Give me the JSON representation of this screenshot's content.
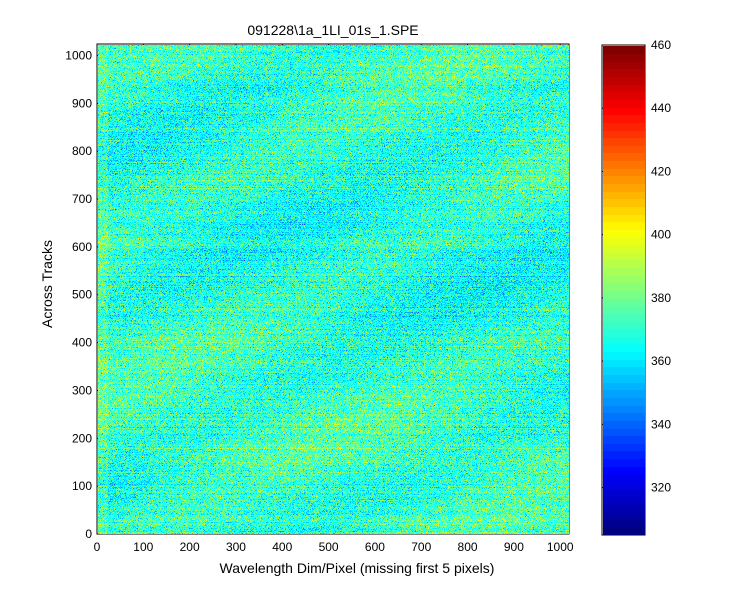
{
  "chart_data": {
    "type": "heatmap",
    "title": "091228\\1a_1LI_01s_1.SPE",
    "xlabel": "Wavelength Dim/Pixel (missing first 5 pixels)",
    "ylabel": "Across Tracks",
    "xlim": [
      0,
      1019
    ],
    "ylim": [
      0,
      1024
    ],
    "x_ticks": [
      0,
      100,
      200,
      300,
      400,
      500,
      600,
      700,
      800,
      900,
      1000
    ],
    "y_ticks": [
      0,
      100,
      200,
      300,
      400,
      500,
      600,
      700,
      800,
      900,
      1000
    ],
    "colormap": "jet",
    "color_range": [
      305,
      460
    ],
    "colorbar_ticks": [
      320,
      340,
      360,
      380,
      400,
      420,
      440,
      460
    ],
    "typical_value_range": [
      345,
      395
    ],
    "mean_value": 370,
    "grid": false
  },
  "colors": {
    "axis": "#000000",
    "background": "#ffffff"
  }
}
